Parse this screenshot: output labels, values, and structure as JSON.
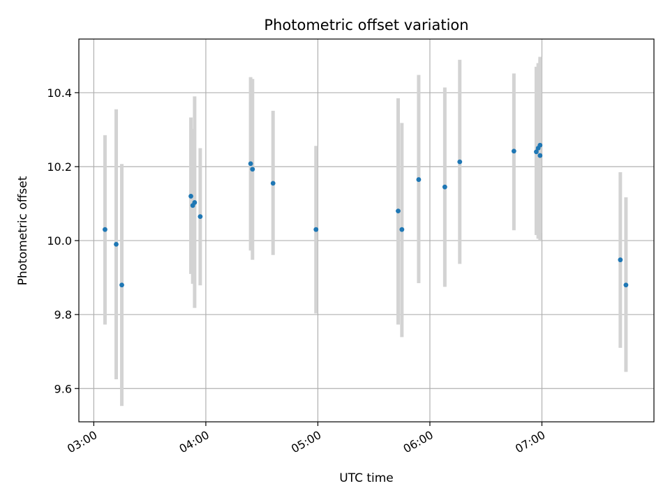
{
  "chart_data": {
    "type": "scatter",
    "title": "Photometric offset variation",
    "xlabel": "UTC time",
    "ylabel": "Photometric offset",
    "x_unit": "UTC clock time",
    "x_range": [
      "02:52",
      "08:00"
    ],
    "ylim": [
      9.51,
      10.545
    ],
    "x_ticks": [
      "03:00",
      "04:00",
      "05:00",
      "06:00",
      "07:00"
    ],
    "y_ticks": [
      "9.6",
      "9.8",
      "10.0",
      "10.2",
      "10.4"
    ],
    "y_tick_values": [
      9.6,
      9.8,
      10.0,
      10.2,
      10.4
    ],
    "grid": true,
    "colors": {
      "point": "#1f77b4",
      "errorbar": "#d3d3d3",
      "grid": "#b0b0b0"
    },
    "points": [
      {
        "x": "03:06",
        "y": 10.03,
        "yerr_low": 9.773,
        "yerr_high": 10.285
      },
      {
        "x": "03:12",
        "y": 9.99,
        "yerr_low": 9.625,
        "yerr_high": 10.355
      },
      {
        "x": "03:15",
        "y": 9.88,
        "yerr_low": 9.553,
        "yerr_high": 10.207
      },
      {
        "x": "03:52",
        "y": 10.12,
        "yerr_low": 9.91,
        "yerr_high": 10.333
      },
      {
        "x": "03:53",
        "y": 10.095,
        "yerr_low": 9.883,
        "yerr_high": 10.302
      },
      {
        "x": "03:54",
        "y": 10.103,
        "yerr_low": 9.818,
        "yerr_high": 10.39
      },
      {
        "x": "03:57",
        "y": 10.065,
        "yerr_low": 9.879,
        "yerr_high": 10.25
      },
      {
        "x": "04:24",
        "y": 10.208,
        "yerr_low": 9.973,
        "yerr_high": 10.442
      },
      {
        "x": "04:25",
        "y": 10.193,
        "yerr_low": 9.948,
        "yerr_high": 10.437
      },
      {
        "x": "04:36",
        "y": 10.155,
        "yerr_low": 9.961,
        "yerr_high": 10.351
      },
      {
        "x": "04:59",
        "y": 10.03,
        "yerr_low": 9.803,
        "yerr_high": 10.256
      },
      {
        "x": "05:43",
        "y": 10.08,
        "yerr_low": 9.773,
        "yerr_high": 10.385
      },
      {
        "x": "05:45",
        "y": 10.03,
        "yerr_low": 9.739,
        "yerr_high": 10.318
      },
      {
        "x": "05:54",
        "y": 10.165,
        "yerr_low": 9.885,
        "yerr_high": 10.448
      },
      {
        "x": "06:08",
        "y": 10.145,
        "yerr_low": 9.875,
        "yerr_high": 10.414
      },
      {
        "x": "06:16",
        "y": 10.213,
        "yerr_low": 9.937,
        "yerr_high": 10.489
      },
      {
        "x": "06:45",
        "y": 10.242,
        "yerr_low": 10.028,
        "yerr_high": 10.452
      },
      {
        "x": "06:57",
        "y": 10.24,
        "yerr_low": 10.015,
        "yerr_high": 10.47
      },
      {
        "x": "06:58",
        "y": 10.25,
        "yerr_low": 10.005,
        "yerr_high": 10.48
      },
      {
        "x": "06:59",
        "y": 10.23,
        "yerr_low": 10.0,
        "yerr_high": 10.497
      },
      {
        "x": "06:59",
        "y": 10.258,
        "yerr_low": 10.02,
        "yerr_high": 10.49
      },
      {
        "x": "07:42",
        "y": 9.948,
        "yerr_low": 9.71,
        "yerr_high": 10.185
      },
      {
        "x": "07:45",
        "y": 9.88,
        "yerr_low": 9.645,
        "yerr_high": 10.117
      }
    ]
  }
}
